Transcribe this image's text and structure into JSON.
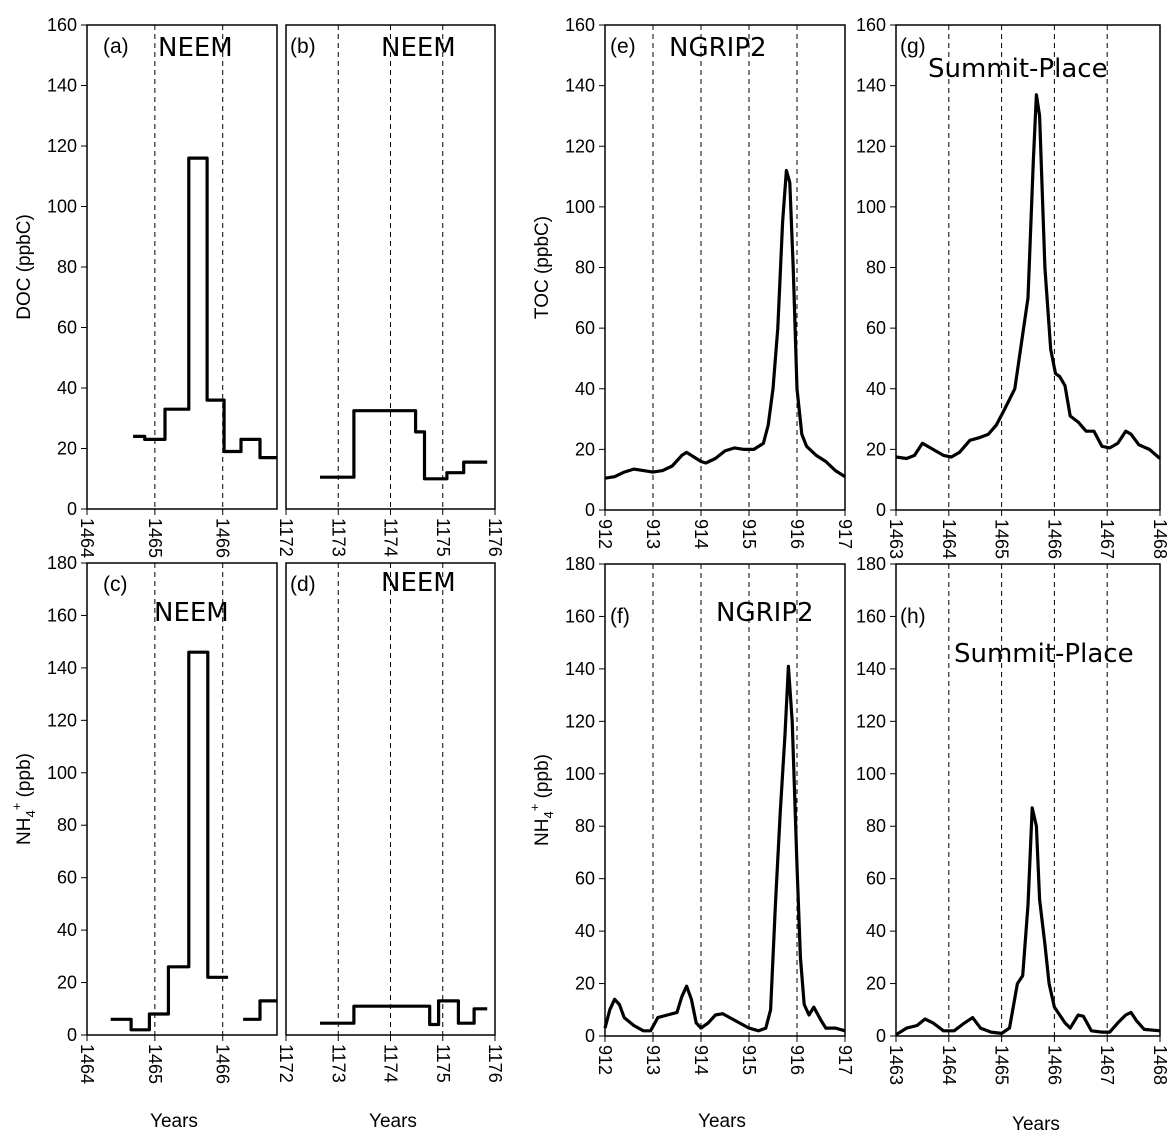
{
  "x_title": "Years",
  "chart_data": [
    {
      "id": "a",
      "type": "line",
      "step": true,
      "panel_label": "(a)",
      "site": "NEEM",
      "ylabel": "DOC (ppbC)",
      "xlim": [
        1464,
        1466.8
      ],
      "xticks": [
        "1464",
        "1465",
        "1466"
      ],
      "ylim": [
        0,
        160
      ],
      "yticks": [
        "0",
        "20",
        "40",
        "60",
        "80",
        "100",
        "120",
        "140",
        "160"
      ],
      "vlines": [
        1465,
        1466
      ],
      "segments": [
        [
          [
            1464.68,
            24
          ],
          [
            1464.85,
            24
          ],
          [
            1464.85,
            23
          ],
          [
            1465.15,
            23
          ],
          [
            1465.15,
            33
          ],
          [
            1465.5,
            33
          ],
          [
            1465.5,
            116
          ],
          [
            1465.77,
            116
          ],
          [
            1465.77,
            36
          ],
          [
            1466.02,
            36
          ],
          [
            1466.02,
            19
          ],
          [
            1466.27,
            19
          ],
          [
            1466.27,
            23
          ],
          [
            1466.55,
            23
          ],
          [
            1466.55,
            17
          ],
          [
            1466.8,
            17
          ]
        ]
      ]
    },
    {
      "id": "b",
      "type": "line",
      "step": true,
      "panel_label": "(b)",
      "site": "NEEM",
      "ylabel": "",
      "xlim": [
        1172,
        1176
      ],
      "xticks": [
        "1172",
        "1173",
        "1174",
        "1175",
        "1176"
      ],
      "ylim": [
        0,
        160
      ],
      "yticks": [],
      "vlines": [
        1173,
        1174,
        1175
      ],
      "segments": [
        [
          [
            1172.65,
            10.5
          ],
          [
            1173.3,
            10.5
          ],
          [
            1173.3,
            32.5
          ],
          [
            1174.48,
            32.5
          ],
          [
            1174.48,
            25.5
          ],
          [
            1174.65,
            25.5
          ],
          [
            1174.65,
            10
          ],
          [
            1175.08,
            10
          ],
          [
            1175.08,
            12
          ],
          [
            1175.4,
            12
          ],
          [
            1175.4,
            15.5
          ],
          [
            1175.85,
            15.5
          ]
        ]
      ]
    },
    {
      "id": "c",
      "type": "line",
      "step": true,
      "panel_label": "(c)",
      "site": "NEEM",
      "ylabel": "NH4+ (ppb)",
      "xlim": [
        1464,
        1466.8
      ],
      "xticks": [
        "1464",
        "1465",
        "1466"
      ],
      "ylim": [
        0,
        180
      ],
      "yticks": [
        "0",
        "20",
        "40",
        "60",
        "80",
        "100",
        "120",
        "140",
        "160",
        "180"
      ],
      "vlines": [
        1465,
        1466
      ],
      "segments": [
        [
          [
            1464.35,
            6
          ],
          [
            1464.65,
            6
          ],
          [
            1464.65,
            2
          ],
          [
            1464.92,
            2
          ],
          [
            1464.92,
            8
          ],
          [
            1465.2,
            8
          ],
          [
            1465.2,
            26
          ],
          [
            1465.5,
            26
          ],
          [
            1465.5,
            146
          ],
          [
            1465.78,
            146
          ],
          [
            1465.78,
            22
          ],
          [
            1466.08,
            22
          ]
        ],
        [
          [
            1466.3,
            6
          ],
          [
            1466.55,
            6
          ],
          [
            1466.55,
            13
          ],
          [
            1466.8,
            13
          ]
        ]
      ]
    },
    {
      "id": "d",
      "type": "line",
      "step": true,
      "panel_label": "(d)",
      "site": "NEEM",
      "ylabel": "",
      "xlim": [
        1172,
        1176
      ],
      "xticks": [
        "1172",
        "1173",
        "1174",
        "1175",
        "1176"
      ],
      "ylim": [
        0,
        180
      ],
      "yticks": [],
      "vlines": [
        1173,
        1174,
        1175
      ],
      "segments": [
        [
          [
            1172.65,
            4.5
          ],
          [
            1173.3,
            4.5
          ],
          [
            1173.3,
            11
          ],
          [
            1174.75,
            11
          ],
          [
            1174.75,
            4
          ],
          [
            1174.92,
            4
          ],
          [
            1174.92,
            13
          ],
          [
            1175.3,
            13
          ],
          [
            1175.3,
            4.5
          ],
          [
            1175.6,
            4.5
          ],
          [
            1175.6,
            10
          ],
          [
            1175.85,
            10
          ]
        ]
      ]
    },
    {
      "id": "e",
      "type": "line",
      "step": false,
      "panel_label": "(e)",
      "site": "NGRIP2",
      "ylabel": "TOC (ppbC)",
      "xlim": [
        912,
        917
      ],
      "xticks": [
        "912",
        "913",
        "914",
        "915",
        "916",
        "917"
      ],
      "ylim": [
        0,
        160
      ],
      "yticks": [
        "0",
        "20",
        "40",
        "60",
        "80",
        "100",
        "120",
        "140",
        "160"
      ],
      "vlines": [
        913,
        914,
        915,
        916
      ],
      "segments": [
        [
          [
            912,
            10.5
          ],
          [
            912.2,
            11
          ],
          [
            912.4,
            12.5
          ],
          [
            912.6,
            13.5
          ],
          [
            912.8,
            13
          ],
          [
            913,
            12.5
          ],
          [
            913.2,
            13
          ],
          [
            913.4,
            14.5
          ],
          [
            913.6,
            18
          ],
          [
            913.7,
            19
          ],
          [
            913.8,
            18
          ],
          [
            914,
            16
          ],
          [
            914.1,
            15.5
          ],
          [
            914.3,
            17
          ],
          [
            914.5,
            19.5
          ],
          [
            914.7,
            20.5
          ],
          [
            914.9,
            20
          ],
          [
            915.1,
            20
          ],
          [
            915.3,
            22
          ],
          [
            915.4,
            28
          ],
          [
            915.5,
            40
          ],
          [
            915.6,
            60
          ],
          [
            915.7,
            95
          ],
          [
            915.78,
            112
          ],
          [
            915.85,
            108
          ],
          [
            915.92,
            80
          ],
          [
            916,
            40
          ],
          [
            916.1,
            25
          ],
          [
            916.2,
            21
          ],
          [
            916.4,
            18
          ],
          [
            916.6,
            16
          ],
          [
            916.8,
            13
          ],
          [
            917,
            11
          ]
        ]
      ]
    },
    {
      "id": "f",
      "type": "line",
      "step": false,
      "panel_label": "(f)",
      "site": "NGRIP2",
      "ylabel": "NH4+ (ppb)",
      "xlim": [
        912,
        917
      ],
      "xticks": [
        "912",
        "913",
        "914",
        "915",
        "916",
        "917"
      ],
      "ylim": [
        0,
        180
      ],
      "yticks": [
        "0",
        "20",
        "40",
        "60",
        "80",
        "100",
        "120",
        "140",
        "160",
        "180"
      ],
      "vlines": [
        913,
        914,
        915,
        916
      ],
      "segments": [
        [
          [
            912,
            3
          ],
          [
            912.1,
            10
          ],
          [
            912.2,
            14
          ],
          [
            912.3,
            12
          ],
          [
            912.4,
            7
          ],
          [
            912.6,
            4
          ],
          [
            912.8,
            2
          ],
          [
            912.95,
            2
          ],
          [
            913.1,
            7
          ],
          [
            913.3,
            8
          ],
          [
            913.5,
            9
          ],
          [
            913.6,
            15
          ],
          [
            913.7,
            19
          ],
          [
            913.8,
            14
          ],
          [
            913.9,
            5
          ],
          [
            914,
            3
          ],
          [
            914.15,
            5
          ],
          [
            914.3,
            8
          ],
          [
            914.45,
            8.5
          ],
          [
            914.6,
            7
          ],
          [
            914.8,
            5
          ],
          [
            915,
            3
          ],
          [
            915.2,
            2
          ],
          [
            915.35,
            3
          ],
          [
            915.45,
            10
          ],
          [
            915.55,
            50
          ],
          [
            915.65,
            85
          ],
          [
            915.75,
            115
          ],
          [
            915.82,
            141
          ],
          [
            915.9,
            120
          ],
          [
            916,
            65
          ],
          [
            916.07,
            30
          ],
          [
            916.15,
            12
          ],
          [
            916.25,
            8
          ],
          [
            916.35,
            11
          ],
          [
            916.5,
            6
          ],
          [
            916.6,
            3
          ],
          [
            916.8,
            3
          ],
          [
            917,
            2
          ]
        ]
      ]
    },
    {
      "id": "g",
      "type": "line",
      "step": false,
      "panel_label": "(g)",
      "site": "Summit-Place",
      "ylabel": "",
      "xlim": [
        1463,
        1468
      ],
      "xticks": [
        "1463",
        "1464",
        "1465",
        "1466",
        "1467",
        "1468"
      ],
      "ylim": [
        0,
        160
      ],
      "yticks": [
        "0",
        "20",
        "40",
        "60",
        "80",
        "100",
        "120",
        "140",
        "160"
      ],
      "vlines": [
        1464,
        1465,
        1466,
        1467
      ],
      "segments": [
        [
          [
            1463,
            17.5
          ],
          [
            1463.2,
            17
          ],
          [
            1463.35,
            18
          ],
          [
            1463.5,
            22
          ],
          [
            1463.7,
            20
          ],
          [
            1463.9,
            18
          ],
          [
            1464.05,
            17.5
          ],
          [
            1464.2,
            19
          ],
          [
            1464.4,
            23
          ],
          [
            1464.6,
            24
          ],
          [
            1464.75,
            25
          ],
          [
            1464.9,
            28
          ],
          [
            1465.05,
            33
          ],
          [
            1465.25,
            40
          ],
          [
            1465.35,
            52
          ],
          [
            1465.5,
            70
          ],
          [
            1465.6,
            115
          ],
          [
            1465.66,
            137
          ],
          [
            1465.72,
            130
          ],
          [
            1465.82,
            80
          ],
          [
            1465.93,
            53
          ],
          [
            1466.02,
            45
          ],
          [
            1466.1,
            44
          ],
          [
            1466.2,
            41
          ],
          [
            1466.3,
            31
          ],
          [
            1466.45,
            29
          ],
          [
            1466.6,
            26
          ],
          [
            1466.75,
            26
          ],
          [
            1466.9,
            21
          ],
          [
            1467.05,
            20.5
          ],
          [
            1467.2,
            22
          ],
          [
            1467.35,
            26
          ],
          [
            1467.45,
            25
          ],
          [
            1467.6,
            21.5
          ],
          [
            1467.8,
            20
          ],
          [
            1468,
            17
          ]
        ]
      ]
    },
    {
      "id": "h",
      "type": "line",
      "step": false,
      "panel_label": "(h)",
      "site": "Summit-Place",
      "ylabel": "",
      "xlim": [
        1463,
        1468
      ],
      "xticks": [
        "1463",
        "1464",
        "1465",
        "1466",
        "1467",
        "1468"
      ],
      "ylim": [
        0,
        180
      ],
      "yticks": [
        "0",
        "20",
        "40",
        "60",
        "80",
        "100",
        "120",
        "140",
        "160",
        "180"
      ],
      "vlines": [
        1464,
        1465,
        1466,
        1467
      ],
      "segments": [
        [
          [
            1463,
            0.5
          ],
          [
            1463.2,
            3
          ],
          [
            1463.4,
            4
          ],
          [
            1463.55,
            6.5
          ],
          [
            1463.7,
            5
          ],
          [
            1463.9,
            2
          ],
          [
            1464.1,
            2
          ],
          [
            1464.3,
            5
          ],
          [
            1464.45,
            7
          ],
          [
            1464.6,
            3
          ],
          [
            1464.8,
            1.5
          ],
          [
            1465,
            1
          ],
          [
            1465.15,
            3
          ],
          [
            1465.3,
            20
          ],
          [
            1465.4,
            23
          ],
          [
            1465.5,
            50
          ],
          [
            1465.58,
            87
          ],
          [
            1465.66,
            80
          ],
          [
            1465.72,
            52
          ],
          [
            1465.82,
            35
          ],
          [
            1465.9,
            20
          ],
          [
            1466,
            11
          ],
          [
            1466.1,
            8
          ],
          [
            1466.2,
            5
          ],
          [
            1466.3,
            3
          ],
          [
            1466.45,
            8
          ],
          [
            1466.55,
            7.5
          ],
          [
            1466.7,
            2
          ],
          [
            1466.9,
            1.5
          ],
          [
            1467.05,
            1.5
          ],
          [
            1467.2,
            5
          ],
          [
            1467.35,
            8
          ],
          [
            1467.45,
            9
          ],
          [
            1467.55,
            6
          ],
          [
            1467.7,
            2.5
          ],
          [
            1468,
            2
          ]
        ]
      ]
    }
  ]
}
